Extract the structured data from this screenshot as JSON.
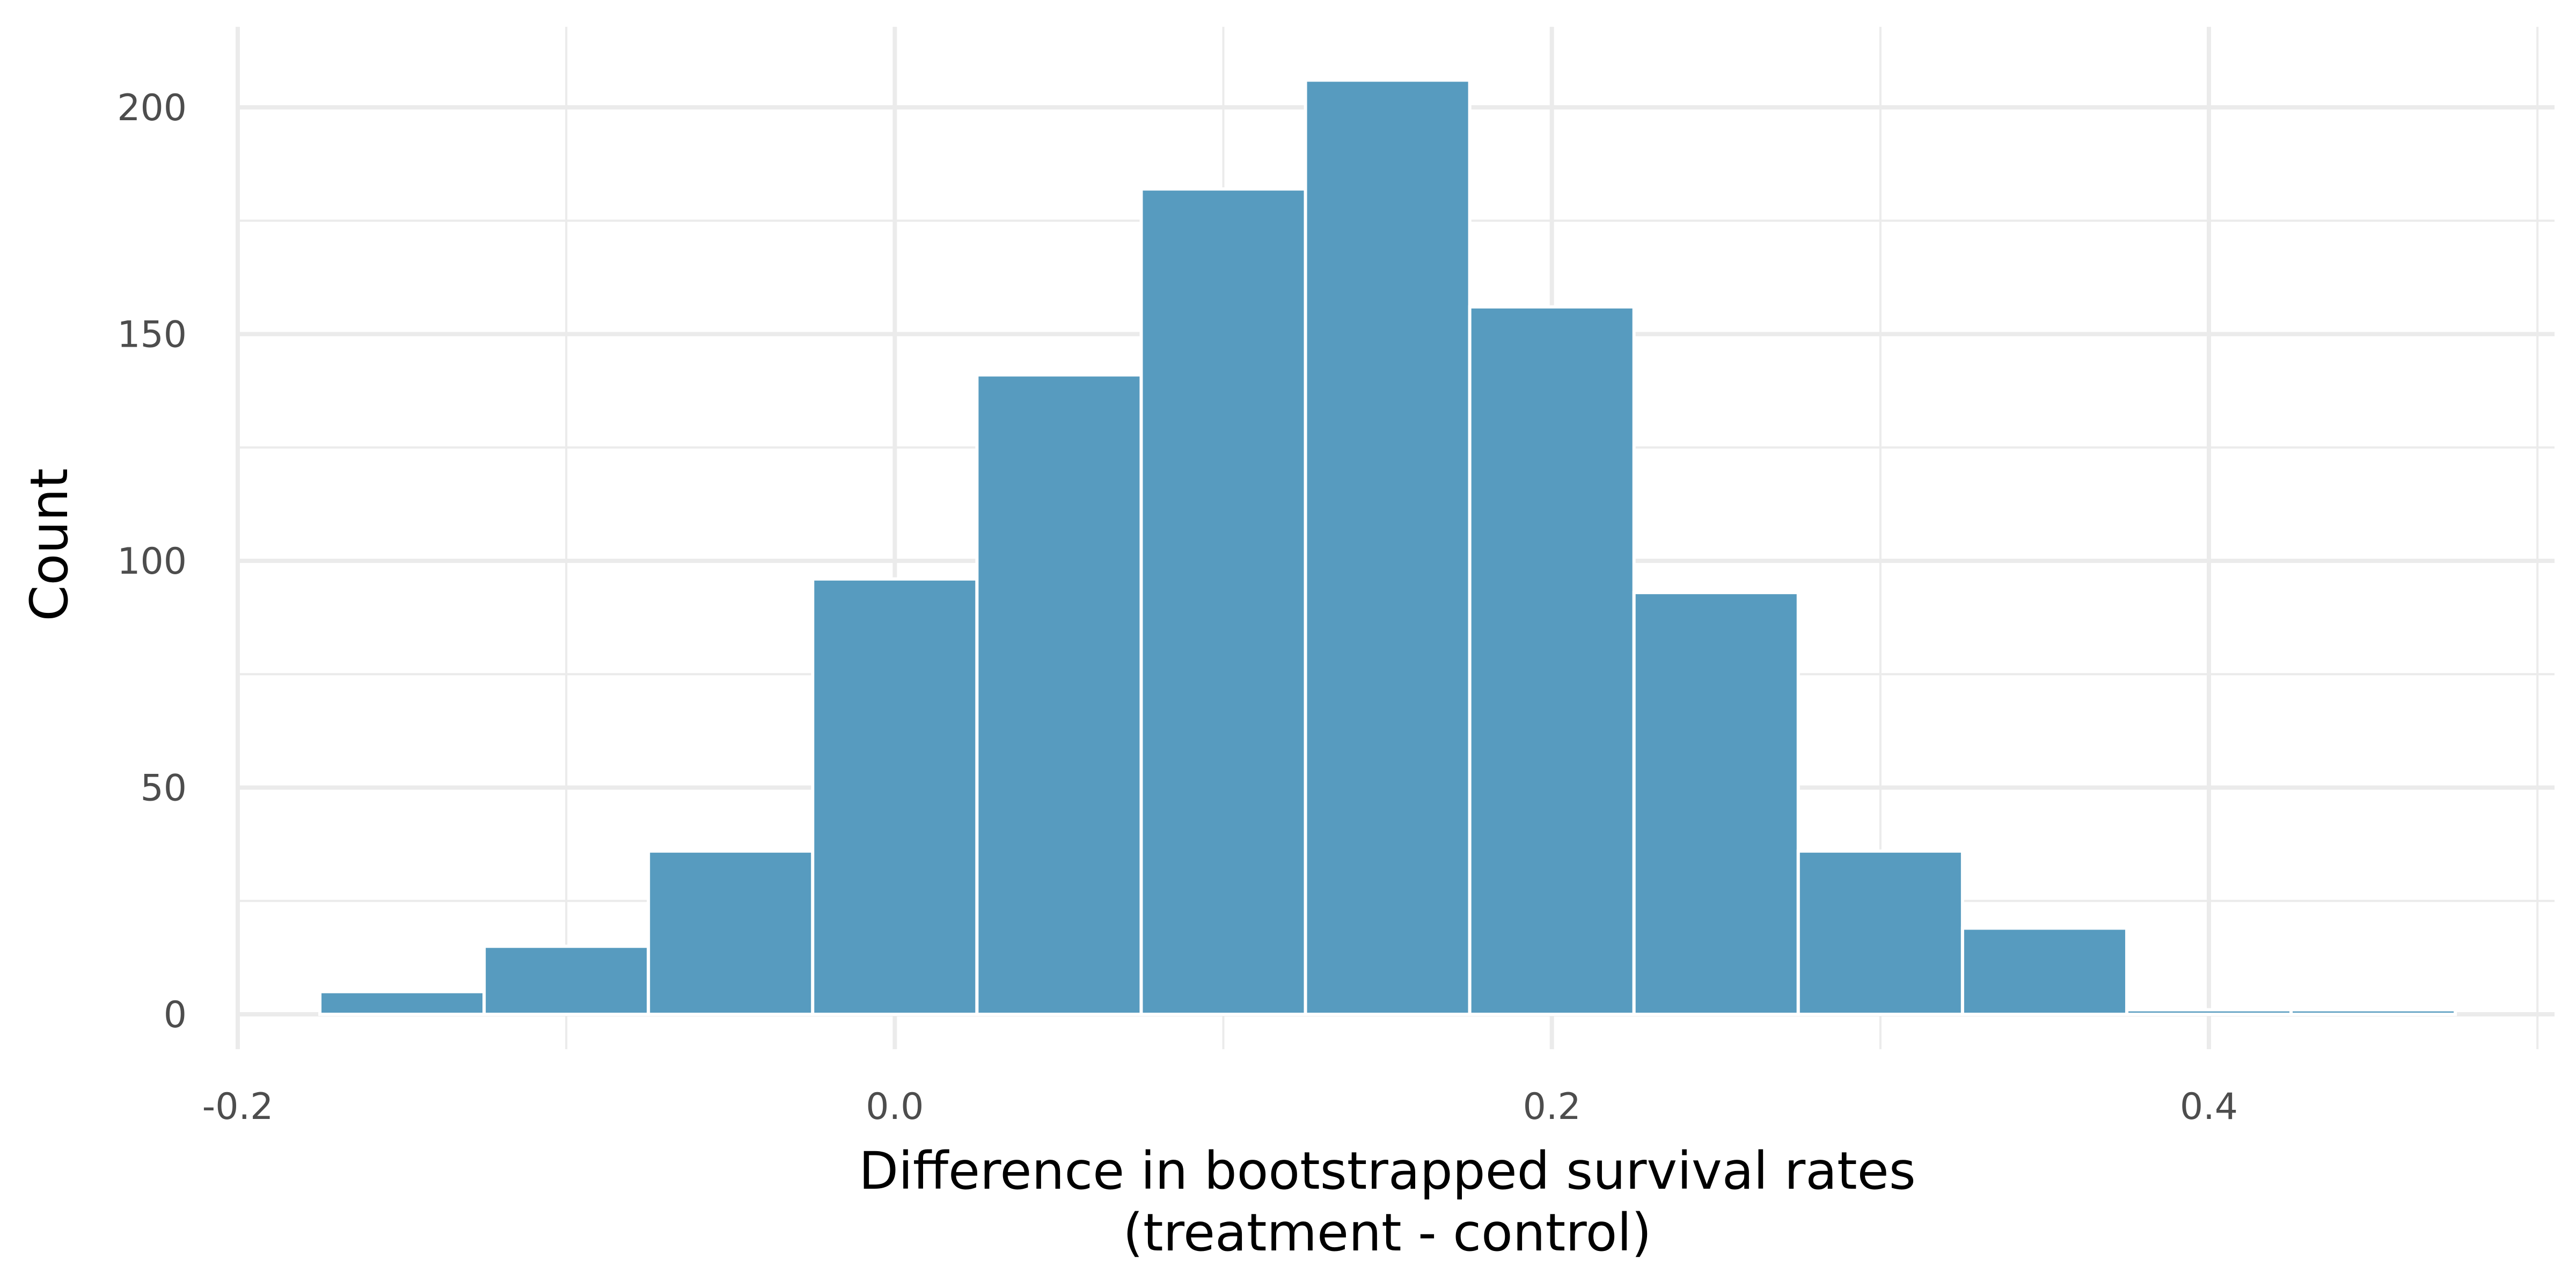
{
  "chart_data": {
    "type": "bar",
    "subtype": "histogram",
    "x": [
      -0.15,
      -0.1,
      -0.05,
      0.0,
      0.05,
      0.1,
      0.15,
      0.2,
      0.25,
      0.3,
      0.35,
      0.4,
      0.45
    ],
    "bin_width": 0.05,
    "values": [
      5,
      15,
      36,
      96,
      141,
      182,
      206,
      156,
      93,
      36,
      19,
      1,
      1
    ],
    "xlabel": "Difference in bootstrapped survival rates",
    "xlabel_line2": "(treatment - control)",
    "ylabel": "Count",
    "xlim": [
      -0.2,
      0.5
    ],
    "ylim": [
      0,
      220
    ],
    "x_ticks": [
      -0.2,
      0.0,
      0.2,
      0.4
    ],
    "x_tick_labels": [
      "-0.2",
      "0.0",
      "0.2",
      "0.4"
    ],
    "x_minor_ticks": [
      -0.1,
      0.1,
      0.3,
      0.5
    ],
    "y_ticks": [
      0,
      50,
      100,
      150,
      200
    ],
    "y_tick_labels": [
      "0",
      "50",
      "100",
      "150",
      "200"
    ],
    "y_minor_ticks": [
      25,
      75,
      125,
      175
    ],
    "grid": true,
    "bar_color": "#579bbf",
    "bar_outline_color": "#ffffff"
  }
}
